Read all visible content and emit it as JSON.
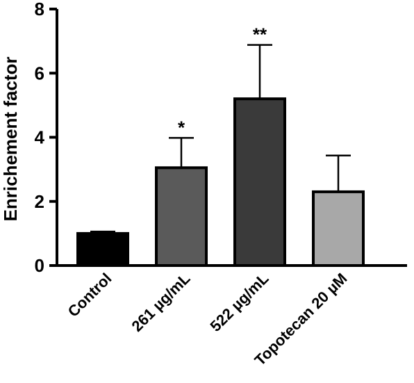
{
  "chart_data": {
    "type": "bar",
    "title": "",
    "xlabel": "",
    "ylabel": "Enrichement factor",
    "ylim": [
      0,
      8
    ],
    "yticks": [
      0,
      2,
      4,
      6,
      8
    ],
    "categories": [
      "Control",
      "261 µg/mL",
      "522 µg/mL",
      "Topotecan 20 µM"
    ],
    "values": [
      1.0,
      3.05,
      5.2,
      2.3
    ],
    "error_upper": [
      1.06,
      3.98,
      6.88,
      3.43
    ],
    "significance": [
      "",
      "*",
      "**",
      ""
    ],
    "colors": [
      "#000000",
      "#5a5a5a",
      "#3a3a3a",
      "#a8a8a8"
    ],
    "grid": false,
    "legend": "none"
  }
}
